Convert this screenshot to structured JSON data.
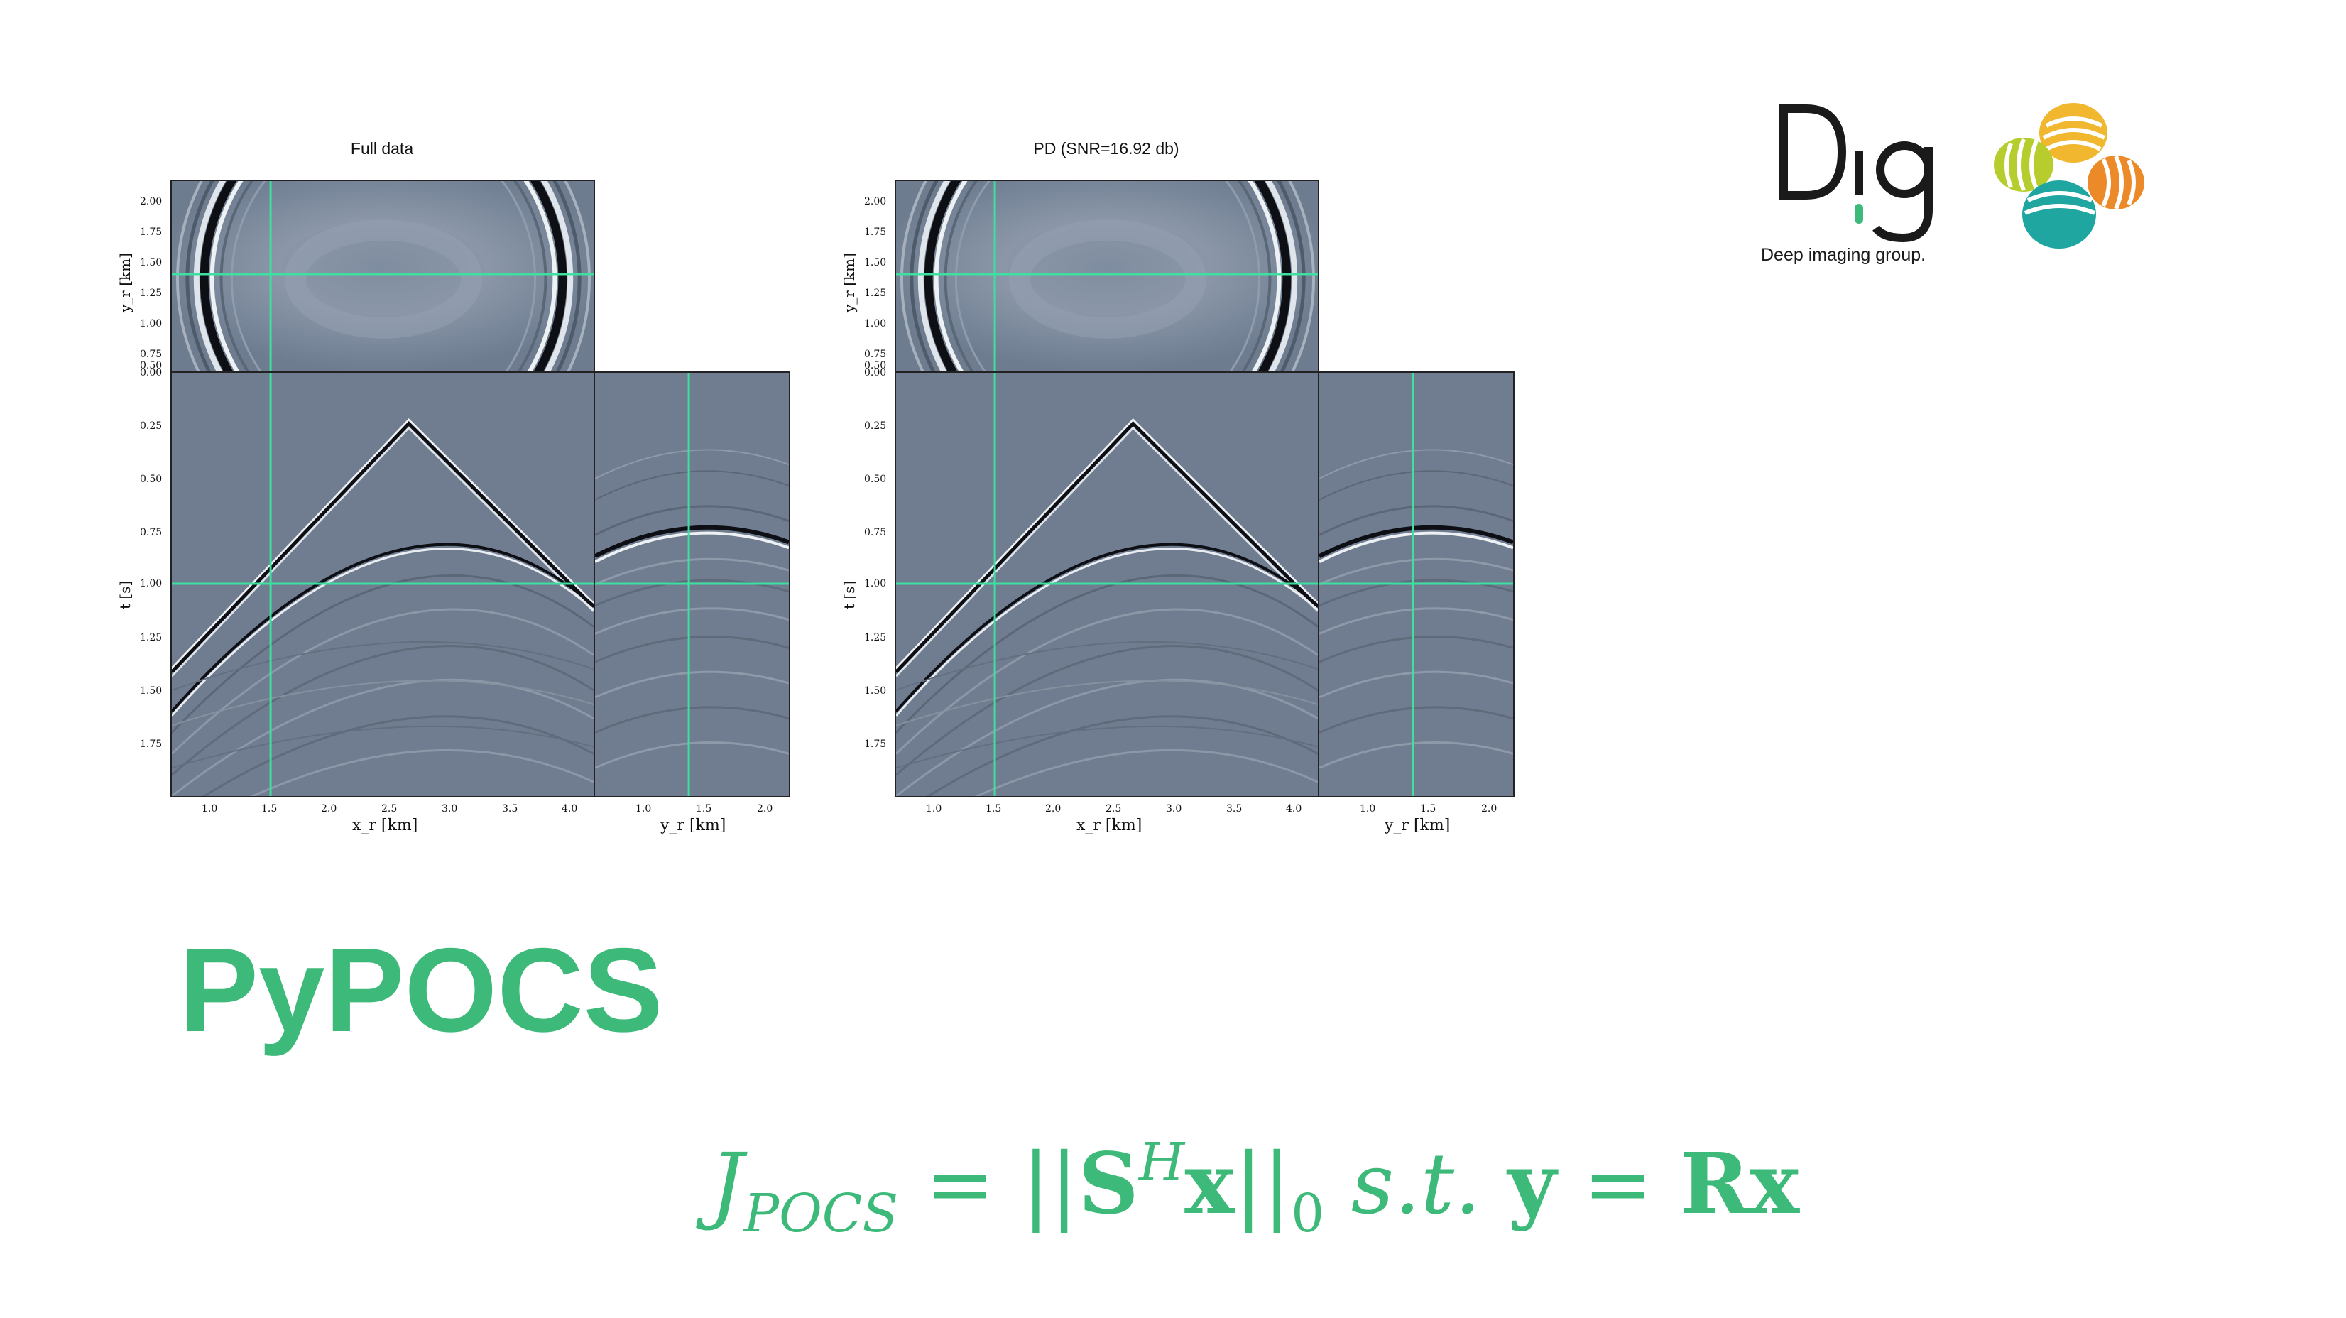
{
  "slide": {
    "title": "PyPOCS",
    "formula": {
      "lhs": "J",
      "lhs_sub": "POCS",
      "eq1": " = ||",
      "S": "S",
      "S_sup": "H",
      "x1": "x",
      "norm_close": "||",
      "norm_sub": "0",
      "st": " s.t. ",
      "y": "y",
      "eq2": " = ",
      "R": "R",
      "x2": "x"
    }
  },
  "panels": [
    {
      "title": "Full data",
      "top_ylabel": "y_r [km]",
      "mid_ylabel": "t [s]",
      "xlabel_main": "x_r [km]",
      "xlabel_side": "y_r [km]",
      "top_yticks": [
        "2.00",
        "1.75",
        "1.50",
        "1.25",
        "1.00",
        "0.75",
        "0.50",
        "0.00"
      ],
      "mid_yticks": [
        "0.25",
        "0.50",
        "0.75",
        "1.00",
        "1.25",
        "1.50",
        "1.75"
      ],
      "main_xticks": [
        "1.0",
        "1.5",
        "2.0",
        "2.5",
        "3.0",
        "3.5",
        "4.0"
      ],
      "side_xticks": [
        "1.0",
        "1.5",
        "2.0"
      ]
    },
    {
      "title": "PD (SNR=16.92 db)",
      "top_ylabel": "y_r [km]",
      "mid_ylabel": "t [s]",
      "xlabel_main": "x_r [km]",
      "xlabel_side": "y_r [km]",
      "top_yticks": [
        "2.00",
        "1.75",
        "1.50",
        "1.25",
        "1.00",
        "0.75",
        "0.50",
        "0.00"
      ],
      "mid_yticks": [
        "0.25",
        "0.50",
        "0.75",
        "1.00",
        "1.25",
        "1.50",
        "1.75"
      ],
      "main_xticks": [
        "1.0",
        "1.5",
        "2.0",
        "2.5",
        "3.0",
        "3.5",
        "4.0"
      ],
      "side_xticks": [
        "1.0",
        "1.5",
        "2.0"
      ]
    }
  ],
  "logos": {
    "dig_text": "Deep imaging group.",
    "dig_mark": "D",
    "dig_mark2": "ig"
  },
  "colors": {
    "accent": "#3dba79",
    "crosshair": "#3ee0a0",
    "seismic_bg": "#707d91"
  }
}
